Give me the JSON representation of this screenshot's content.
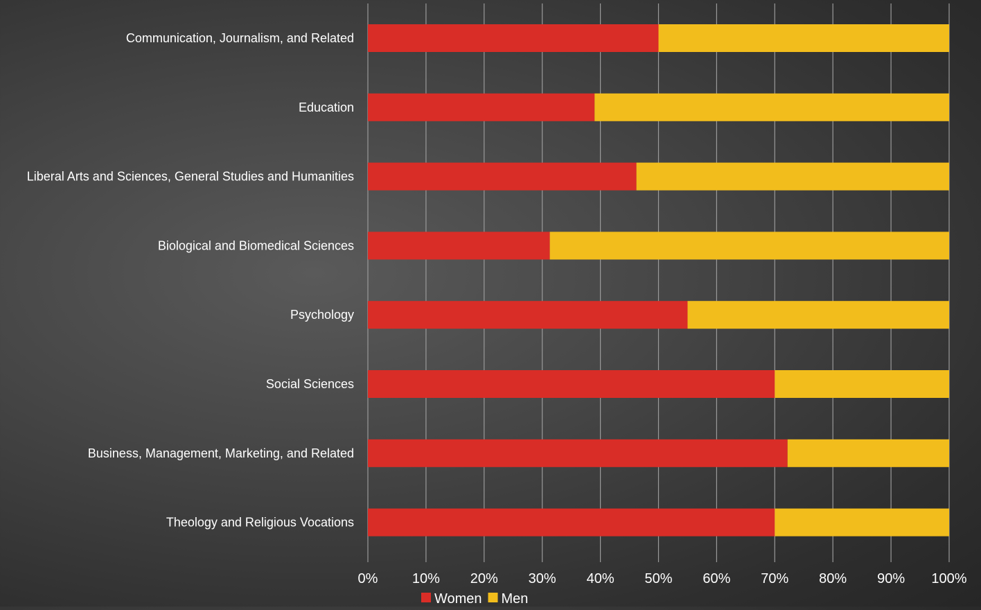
{
  "chart_data": {
    "type": "bar",
    "orientation": "horizontal",
    "stacking": "percent",
    "categories": [
      "Communication, Journalism, and Related",
      "Education",
      "Liberal Arts and Sciences, General Studies and Humanities",
      "Biological and Biomedical Sciences",
      "Psychology",
      "Social Sciences",
      "Business, Management, Marketing, and Related",
      "Theology and Religious Vocations"
    ],
    "series": [
      {
        "name": "Women",
        "color": "#d92d27",
        "values": [
          50,
          39,
          46.2,
          31.3,
          55,
          70,
          72.2,
          70
        ]
      },
      {
        "name": "Men",
        "color": "#f2bd1c",
        "values": [
          50,
          61,
          53.8,
          68.7,
          45,
          30,
          27.8,
          30
        ]
      }
    ],
    "xlim": [
      0,
      100
    ],
    "x_ticks": [
      "0%",
      "10%",
      "20%",
      "30%",
      "40%",
      "50%",
      "60%",
      "70%",
      "80%",
      "90%",
      "100%"
    ],
    "title": "",
    "xlabel": "",
    "ylabel": "",
    "grid": "vertical",
    "legend_position": "bottom"
  }
}
